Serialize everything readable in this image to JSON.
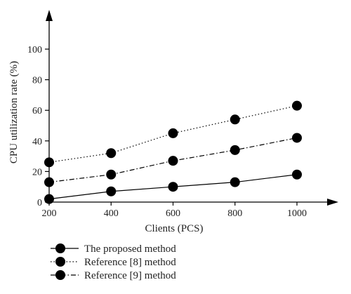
{
  "chart_data": {
    "type": "line",
    "title": "",
    "xlabel": "Clients (PCS)",
    "ylabel": "CPU utilization rate (%)",
    "x": [
      200,
      400,
      600,
      800,
      1000
    ],
    "xticks": [
      "200",
      "400",
      "600",
      "800",
      "1000"
    ],
    "yticks": [
      "0",
      "20",
      "40",
      "60",
      "80",
      "100"
    ],
    "xlim": [
      200,
      1000
    ],
    "ylim": [
      0,
      100
    ],
    "grid": false,
    "legend_position": "bottom",
    "series": [
      {
        "name": "The proposed method",
        "values": [
          2,
          7,
          10,
          13,
          18
        ],
        "line_style": "solid",
        "color": "#000000",
        "marker": "filled-circle"
      },
      {
        "name": "Reference [8] method",
        "values": [
          26,
          32,
          45,
          54,
          63
        ],
        "line_style": "dotted",
        "color": "#000000",
        "marker": "filled-circle"
      },
      {
        "name": "Reference [9] method",
        "values": [
          13,
          18,
          27,
          34,
          42
        ],
        "line_style": "dash-dot",
        "color": "#000000",
        "marker": "filled-circle"
      }
    ]
  }
}
